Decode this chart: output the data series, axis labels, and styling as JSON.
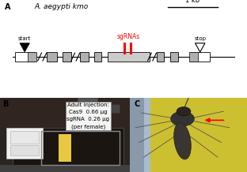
{
  "panel_A_label": "A",
  "panel_B_label": "B",
  "panel_C_label": "C",
  "gene_title": "A. aegypti kmo",
  "scale_bar_label": "1 kb",
  "start_label": "start",
  "stop_label": "stop",
  "sgrna_label": "sgRNAs",
  "sgrna_color": "#ff0000",
  "injection_text": "Adult injection:\nCas9  0.66 μg\nsgRNA  0.26 μg\n(per female)",
  "bg_color": "#ffffff",
  "exon_color_white": "#ffffff",
  "exon_color_gray": "#b0b0b0",
  "exon_color_lightgray": "#cccccc",
  "panel_B_bg": "#3a3530",
  "panel_B_equipment_color": "#e8e8e8",
  "panel_B_tray_color": "#505050",
  "panel_C_yellow": "#d4c040",
  "panel_C_blue": "#9aaabb",
  "panel_C_mosquito": "#444444",
  "label_fontsize": 7
}
